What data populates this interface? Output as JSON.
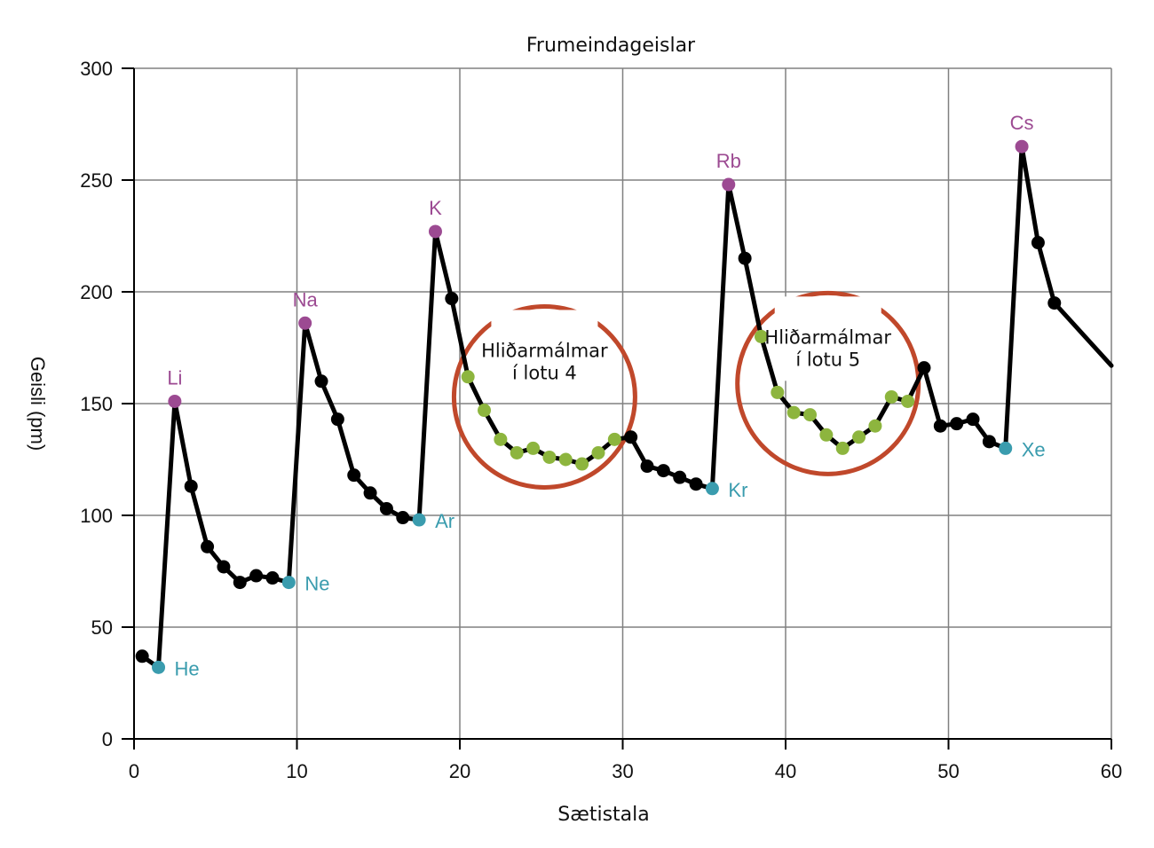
{
  "chart_data": {
    "type": "line",
    "title": "Frumeindageislar",
    "xlabel": "Sætistala",
    "ylabel": "Geisli (pm)",
    "xlim": [
      0,
      60
    ],
    "ylim": [
      0,
      300
    ],
    "xticks": [
      0,
      10,
      20,
      30,
      40,
      50,
      60
    ],
    "yticks": [
      0,
      50,
      100,
      150,
      200,
      250,
      300
    ],
    "grid": true,
    "colors": {
      "line": "#000000",
      "default_point": "#000000",
      "alkali": "#9c4a92",
      "noble": "#3a9cae",
      "transition": "#8db53e",
      "circle": "#c0482b",
      "grid": "#808080"
    },
    "points": [
      {
        "z": 1,
        "r": 37,
        "group": "default"
      },
      {
        "z": 2,
        "r": 32,
        "group": "noble",
        "label": "He"
      },
      {
        "z": 3,
        "r": 151,
        "group": "alkali",
        "label": "Li"
      },
      {
        "z": 4,
        "r": 113,
        "group": "default"
      },
      {
        "z": 5,
        "r": 86,
        "group": "default"
      },
      {
        "z": 6,
        "r": 77,
        "group": "default"
      },
      {
        "z": 7,
        "r": 70,
        "group": "default"
      },
      {
        "z": 8,
        "r": 73,
        "group": "default"
      },
      {
        "z": 9,
        "r": 72,
        "group": "default"
      },
      {
        "z": 10,
        "r": 70,
        "group": "noble",
        "label": "Ne"
      },
      {
        "z": 11,
        "r": 186,
        "group": "alkali",
        "label": "Na"
      },
      {
        "z": 12,
        "r": 160,
        "group": "default"
      },
      {
        "z": 13,
        "r": 143,
        "group": "default"
      },
      {
        "z": 14,
        "r": 118,
        "group": "default"
      },
      {
        "z": 15,
        "r": 110,
        "group": "default"
      },
      {
        "z": 16,
        "r": 103,
        "group": "default"
      },
      {
        "z": 17,
        "r": 99,
        "group": "default"
      },
      {
        "z": 18,
        "r": 98,
        "group": "noble",
        "label": "Ar"
      },
      {
        "z": 19,
        "r": 227,
        "group": "alkali",
        "label": "K"
      },
      {
        "z": 20,
        "r": 197,
        "group": "default"
      },
      {
        "z": 21,
        "r": 162,
        "group": "transition"
      },
      {
        "z": 22,
        "r": 147,
        "group": "transition"
      },
      {
        "z": 23,
        "r": 134,
        "group": "transition"
      },
      {
        "z": 24,
        "r": 128,
        "group": "transition"
      },
      {
        "z": 25,
        "r": 130,
        "group": "transition"
      },
      {
        "z": 26,
        "r": 126,
        "group": "transition"
      },
      {
        "z": 27,
        "r": 125,
        "group": "transition"
      },
      {
        "z": 28,
        "r": 123,
        "group": "transition"
      },
      {
        "z": 29,
        "r": 128,
        "group": "transition"
      },
      {
        "z": 30,
        "r": 134,
        "group": "transition"
      },
      {
        "z": 31,
        "r": 135,
        "group": "default"
      },
      {
        "z": 32,
        "r": 122,
        "group": "default"
      },
      {
        "z": 33,
        "r": 120,
        "group": "default"
      },
      {
        "z": 34,
        "r": 117,
        "group": "default"
      },
      {
        "z": 35,
        "r": 114,
        "group": "default"
      },
      {
        "z": 36,
        "r": 112,
        "group": "noble",
        "label": "Kr"
      },
      {
        "z": 37,
        "r": 248,
        "group": "alkali",
        "label": "Rb"
      },
      {
        "z": 38,
        "r": 215,
        "group": "default"
      },
      {
        "z": 39,
        "r": 180,
        "group": "transition"
      },
      {
        "z": 40,
        "r": 155,
        "group": "transition"
      },
      {
        "z": 41,
        "r": 146,
        "group": "transition"
      },
      {
        "z": 42,
        "r": 145,
        "group": "transition"
      },
      {
        "z": 43,
        "r": 136,
        "group": "transition"
      },
      {
        "z": 44,
        "r": 130,
        "group": "transition"
      },
      {
        "z": 45,
        "r": 135,
        "group": "transition"
      },
      {
        "z": 46,
        "r": 140,
        "group": "transition"
      },
      {
        "z": 47,
        "r": 153,
        "group": "transition"
      },
      {
        "z": 48,
        "r": 151,
        "group": "transition"
      },
      {
        "z": 49,
        "r": 166,
        "group": "default"
      },
      {
        "z": 50,
        "r": 140,
        "group": "default"
      },
      {
        "z": 51,
        "r": 141,
        "group": "default"
      },
      {
        "z": 52,
        "r": 143,
        "group": "default"
      },
      {
        "z": 53,
        "r": 133,
        "group": "default"
      },
      {
        "z": 54,
        "r": 130,
        "group": "noble",
        "label": "Xe"
      },
      {
        "z": 55,
        "r": 265,
        "group": "alkali",
        "label": "Cs"
      },
      {
        "z": 56,
        "r": 222,
        "group": "default"
      },
      {
        "z": 57,
        "r": 195,
        "group": "default"
      }
    ],
    "line_end": {
      "x": 60,
      "y": 167
    },
    "annotations": [
      {
        "line1": "Hliðarmálmar",
        "line2": "í lotu 4",
        "center_x": 25.2,
        "center_y": 153
      },
      {
        "line1": "Hliðarmálmar",
        "line2": "í lotu 5",
        "center_x": 42.6,
        "center_y": 159
      }
    ]
  }
}
